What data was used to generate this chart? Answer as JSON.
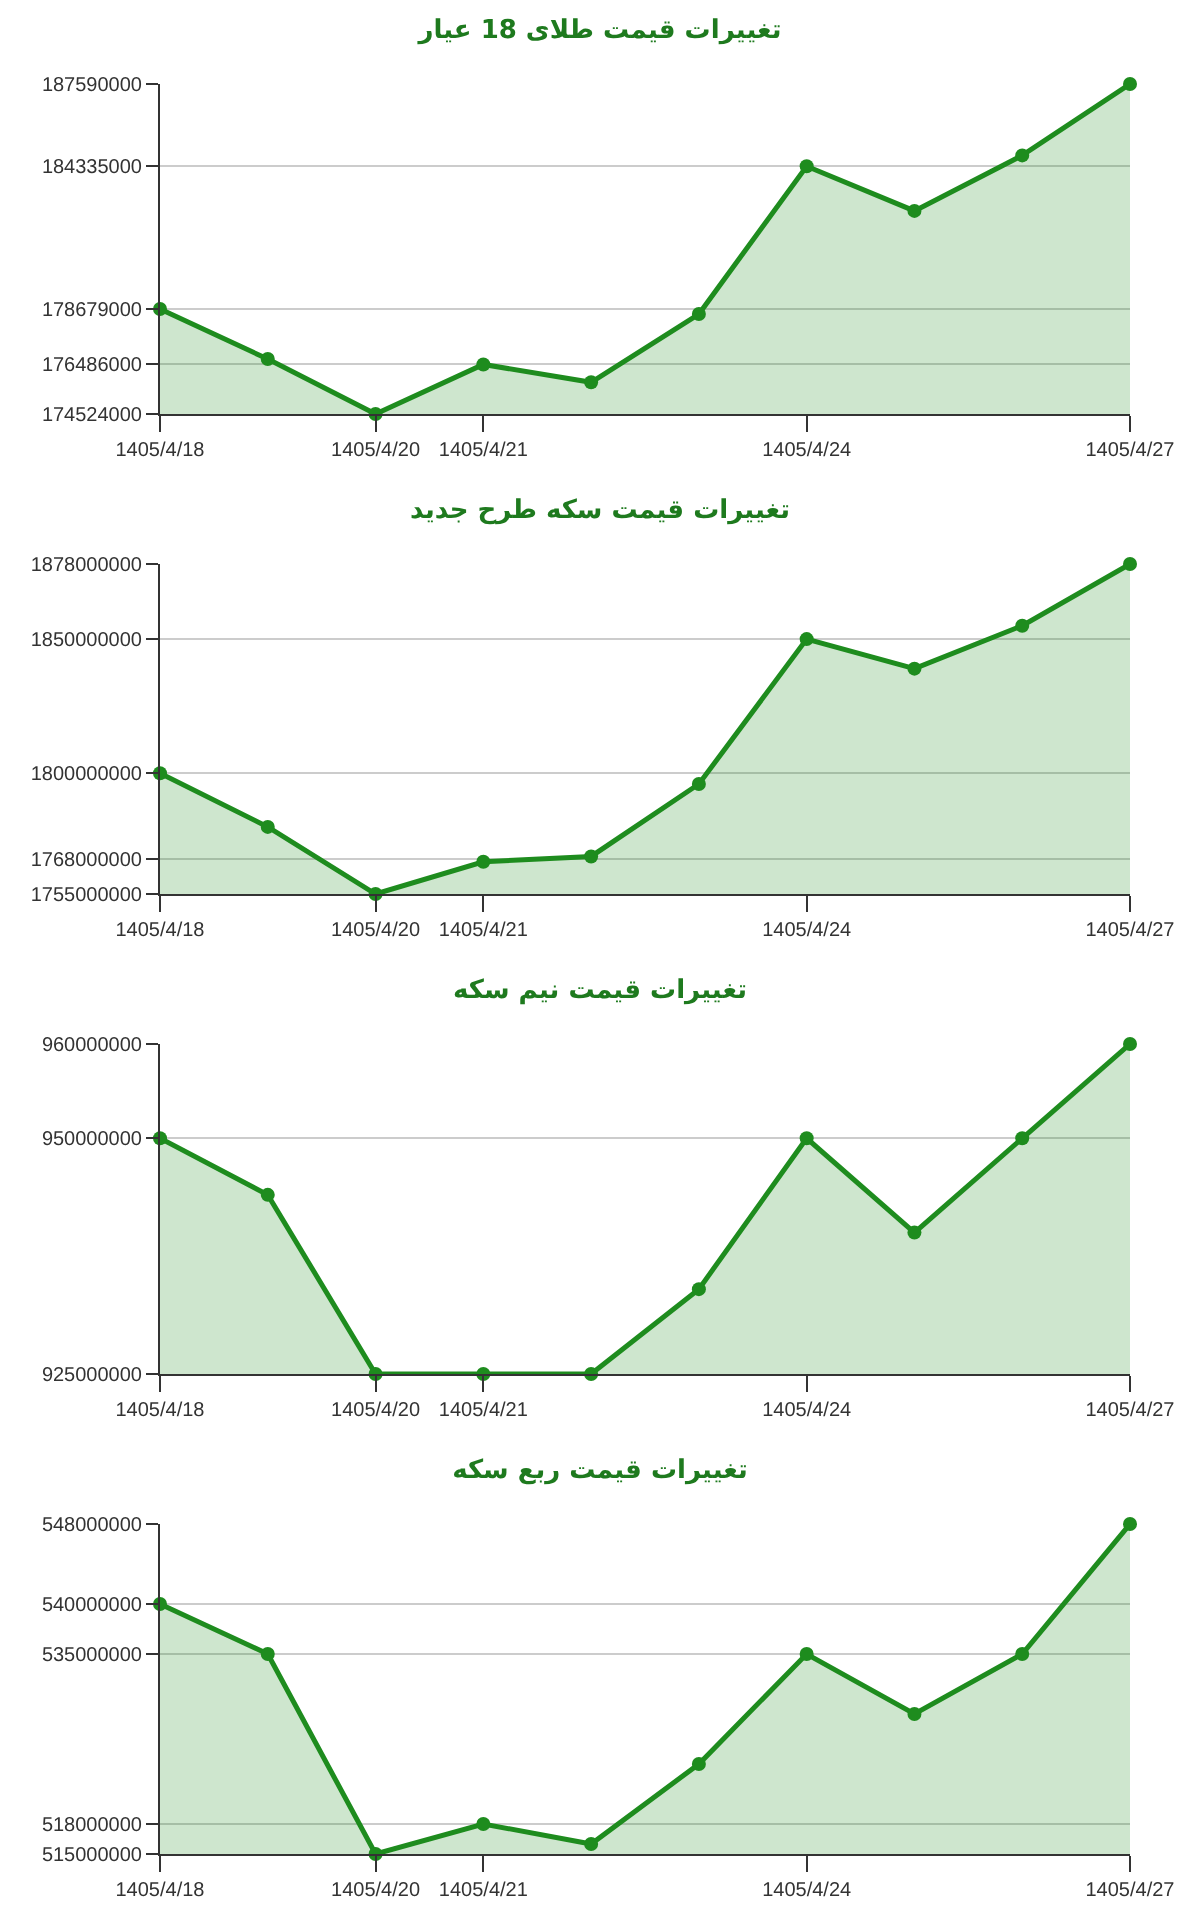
{
  "chart_data": [
    {
      "type": "area",
      "title": "تغییرات قیمت طلای 18 عیار",
      "categories": [
        "1405/4/18",
        null,
        "1405/4/20",
        "1405/4/21",
        null,
        null,
        "1405/4/24",
        null,
        null,
        "1405/4/27"
      ],
      "series": [
        {
          "color": "#1e8c1e",
          "values": [
            178679000,
            176700000,
            174524000,
            176486000,
            175780000,
            178482000,
            184335000,
            182565000,
            184763000,
            187590000
          ]
        }
      ],
      "ylim": [
        174524000,
        187590000
      ],
      "yticks": [
        174524000,
        176486000,
        178679000,
        184335000,
        187590000
      ],
      "grid": "y",
      "marker": "circle",
      "line_style": "solid"
    },
    {
      "type": "area",
      "title": "تغییرات قیمت سکه طرح جدید",
      "categories": [
        "1405/4/18",
        null,
        "1405/4/20",
        "1405/4/21",
        null,
        null,
        "1405/4/24",
        null,
        null,
        "1405/4/27"
      ],
      "series": [
        {
          "color": "#1e8c1e",
          "values": [
            1800000000,
            1780000000,
            1755000000,
            1767000000,
            1769000000,
            1796000000,
            1850000000,
            1839000000,
            1855000000,
            1878000000
          ]
        }
      ],
      "ylim": [
        1755000000,
        1878000000
      ],
      "yticks": [
        1755000000,
        1768000000,
        1800000000,
        1850000000,
        1878000000
      ],
      "grid": "y",
      "marker": "circle",
      "line_style": "solid"
    },
    {
      "type": "area",
      "title": "تغییرات قیمت نیم سکه",
      "categories": [
        "1405/4/18",
        null,
        "1405/4/20",
        "1405/4/21",
        null,
        null,
        "1405/4/24",
        null,
        null,
        "1405/4/27"
      ],
      "series": [
        {
          "color": "#1e8c1e",
          "values": [
            950000000,
            944000000,
            925000000,
            925000000,
            925000000,
            934000000,
            950000000,
            940000000,
            950000000,
            960000000
          ]
        }
      ],
      "ylim": [
        925000000,
        960000000
      ],
      "yticks": [
        925000000,
        950000000,
        960000000
      ],
      "grid": "y",
      "marker": "circle",
      "line_style": "solid"
    },
    {
      "type": "area",
      "title": "تغییرات قیمت ربع سکه",
      "categories": [
        "1405/4/18",
        null,
        "1405/4/20",
        "1405/4/21",
        null,
        null,
        "1405/4/24",
        null,
        null,
        "1405/4/27"
      ],
      "series": [
        {
          "color": "#1e8c1e",
          "values": [
            540000000,
            535000000,
            515000000,
            518000000,
            516000000,
            524000000,
            535000000,
            529000000,
            535000000,
            548000000
          ]
        }
      ],
      "ylim": [
        515000000,
        548000000
      ],
      "yticks": [
        515000000,
        518000000,
        535000000,
        540000000,
        548000000
      ],
      "grid": "y",
      "marker": "circle",
      "line_style": "solid"
    }
  ]
}
